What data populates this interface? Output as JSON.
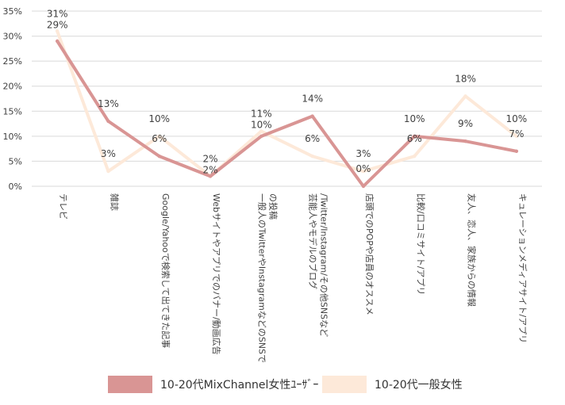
{
  "chart_data": {
    "type": "line",
    "categories": [
      "テレビ",
      "雑誌",
      "Google/Yahooで検索して出てきた記事",
      "Webサイトやアプリでのバナー/動画広告",
      "一般人のTwitterやInstagramなどのSNSでの投稿",
      "芸能人やモデルのブログ/Twitter/Instagram/その他SNSなど",
      "店頭でのPOPや店員のオススメ",
      "比較/口コミサイト/アプリ",
      "友人、恋人、家族からの情報",
      "キュレーションメディアサイト/アプリ"
    ],
    "category_label_lines": [
      [
        "テレビ"
      ],
      [
        "雑誌"
      ],
      [
        "Google/Yahooで検索して出てきた記事"
      ],
      [
        "Webサイトやアプリでのバナー/動画広告"
      ],
      [
        "一般人のTwitterやInstagramなどのSNSで",
        "の投稿"
      ],
      [
        "芸能人やモデルのブログ",
        "/Twitter/Instagram/その他SNSなど"
      ],
      [
        "店頭でのPOPや店員のオススメ"
      ],
      [
        "比較/口コミサイト/アプリ"
      ],
      [
        "友人、恋人、家族からの情報"
      ],
      [
        "キュレーションメディアサイト/アプリ"
      ]
    ],
    "series": [
      {
        "name": "10-20代MixChannel女性ﾕｰｻﾞｰ",
        "values": [
          29,
          13,
          6,
          2,
          10,
          14,
          0,
          10,
          9,
          7
        ],
        "labels": [
          "29%",
          "13%",
          "6%",
          "2%",
          "10%",
          "14%",
          "0%",
          "10%",
          "9%",
          "7%"
        ],
        "color": "#d99594"
      },
      {
        "name": "10-20代一般女性",
        "values": [
          31,
          3,
          10,
          2,
          11,
          6,
          3,
          6,
          18,
          10
        ],
        "labels": [
          "31%",
          "3%",
          "10%",
          "2%",
          "11%",
          "6%",
          "3%",
          "6%",
          "18%",
          "10%"
        ],
        "color": "#fde9d9"
      }
    ],
    "ylim": [
      0,
      35
    ],
    "yticks": [
      0,
      5,
      10,
      15,
      20,
      25,
      30,
      35
    ],
    "ytick_labels": [
      "0%",
      "5%",
      "10%",
      "15%",
      "20%",
      "25%",
      "30%",
      "35%"
    ],
    "grid": true,
    "legend_position": "bottom",
    "title": "",
    "xlabel": "",
    "ylabel": ""
  }
}
